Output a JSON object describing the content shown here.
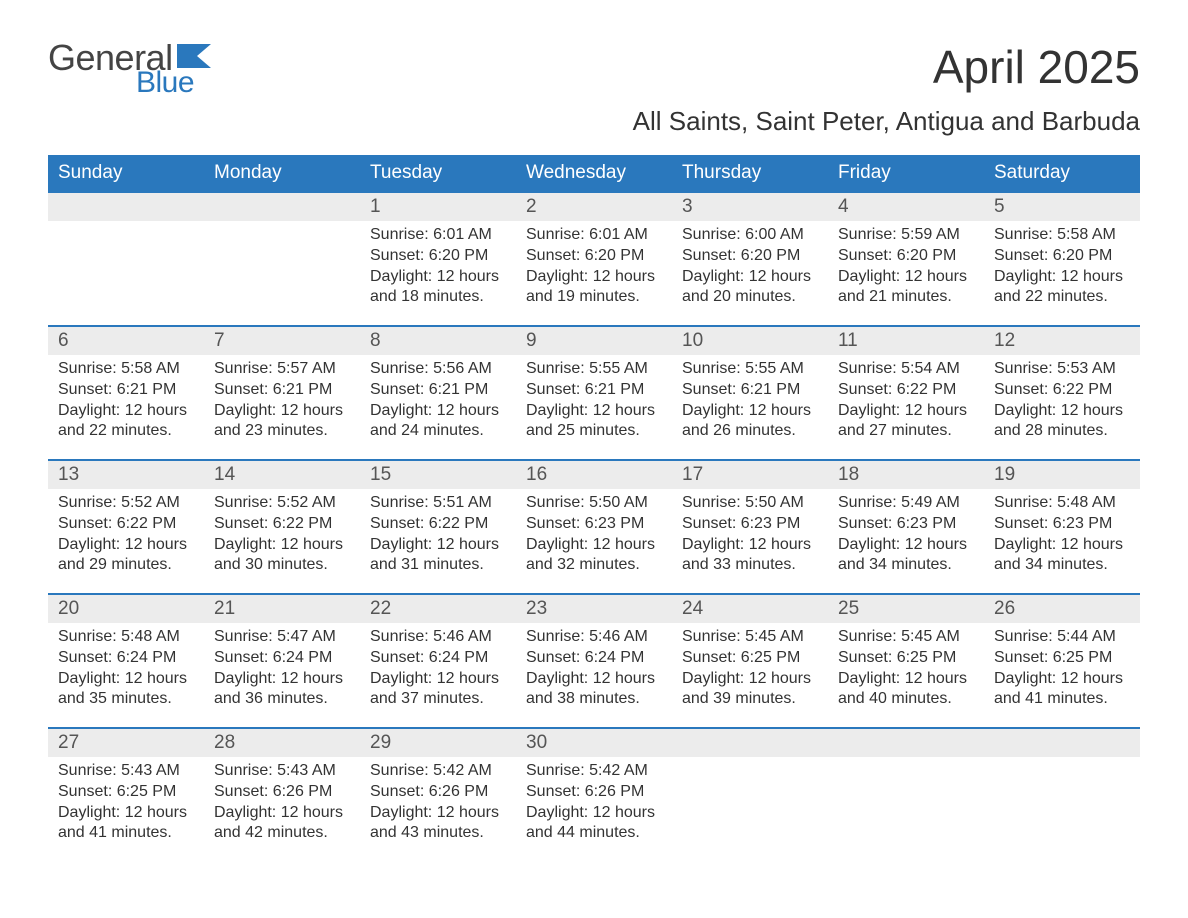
{
  "logo": {
    "word1": "General",
    "word2": "Blue",
    "flag_color": "#2a78bd",
    "word1_color": "#444444",
    "word2_color": "#2a78bd"
  },
  "title": "April 2025",
  "location": "All Saints, Saint Peter, Antigua and Barbuda",
  "colors": {
    "header_bg": "#2a78bd",
    "header_text": "#ffffff",
    "daynum_bg": "#ececec",
    "daynum_text": "#555555",
    "body_text": "#333333",
    "week_border": "#2a78bd",
    "page_bg": "#ffffff"
  },
  "weekdays": [
    "Sunday",
    "Monday",
    "Tuesday",
    "Wednesday",
    "Thursday",
    "Friday",
    "Saturday"
  ],
  "weeks": [
    [
      {
        "day": "",
        "sunrise": "",
        "sunset": "",
        "daylight1": "",
        "daylight2": ""
      },
      {
        "day": "",
        "sunrise": "",
        "sunset": "",
        "daylight1": "",
        "daylight2": ""
      },
      {
        "day": "1",
        "sunrise": "Sunrise: 6:01 AM",
        "sunset": "Sunset: 6:20 PM",
        "daylight1": "Daylight: 12 hours",
        "daylight2": "and 18 minutes."
      },
      {
        "day": "2",
        "sunrise": "Sunrise: 6:01 AM",
        "sunset": "Sunset: 6:20 PM",
        "daylight1": "Daylight: 12 hours",
        "daylight2": "and 19 minutes."
      },
      {
        "day": "3",
        "sunrise": "Sunrise: 6:00 AM",
        "sunset": "Sunset: 6:20 PM",
        "daylight1": "Daylight: 12 hours",
        "daylight2": "and 20 minutes."
      },
      {
        "day": "4",
        "sunrise": "Sunrise: 5:59 AM",
        "sunset": "Sunset: 6:20 PM",
        "daylight1": "Daylight: 12 hours",
        "daylight2": "and 21 minutes."
      },
      {
        "day": "5",
        "sunrise": "Sunrise: 5:58 AM",
        "sunset": "Sunset: 6:20 PM",
        "daylight1": "Daylight: 12 hours",
        "daylight2": "and 22 minutes."
      }
    ],
    [
      {
        "day": "6",
        "sunrise": "Sunrise: 5:58 AM",
        "sunset": "Sunset: 6:21 PM",
        "daylight1": "Daylight: 12 hours",
        "daylight2": "and 22 minutes."
      },
      {
        "day": "7",
        "sunrise": "Sunrise: 5:57 AM",
        "sunset": "Sunset: 6:21 PM",
        "daylight1": "Daylight: 12 hours",
        "daylight2": "and 23 minutes."
      },
      {
        "day": "8",
        "sunrise": "Sunrise: 5:56 AM",
        "sunset": "Sunset: 6:21 PM",
        "daylight1": "Daylight: 12 hours",
        "daylight2": "and 24 minutes."
      },
      {
        "day": "9",
        "sunrise": "Sunrise: 5:55 AM",
        "sunset": "Sunset: 6:21 PM",
        "daylight1": "Daylight: 12 hours",
        "daylight2": "and 25 minutes."
      },
      {
        "day": "10",
        "sunrise": "Sunrise: 5:55 AM",
        "sunset": "Sunset: 6:21 PM",
        "daylight1": "Daylight: 12 hours",
        "daylight2": "and 26 minutes."
      },
      {
        "day": "11",
        "sunrise": "Sunrise: 5:54 AM",
        "sunset": "Sunset: 6:22 PM",
        "daylight1": "Daylight: 12 hours",
        "daylight2": "and 27 minutes."
      },
      {
        "day": "12",
        "sunrise": "Sunrise: 5:53 AM",
        "sunset": "Sunset: 6:22 PM",
        "daylight1": "Daylight: 12 hours",
        "daylight2": "and 28 minutes."
      }
    ],
    [
      {
        "day": "13",
        "sunrise": "Sunrise: 5:52 AM",
        "sunset": "Sunset: 6:22 PM",
        "daylight1": "Daylight: 12 hours",
        "daylight2": "and 29 minutes."
      },
      {
        "day": "14",
        "sunrise": "Sunrise: 5:52 AM",
        "sunset": "Sunset: 6:22 PM",
        "daylight1": "Daylight: 12 hours",
        "daylight2": "and 30 minutes."
      },
      {
        "day": "15",
        "sunrise": "Sunrise: 5:51 AM",
        "sunset": "Sunset: 6:22 PM",
        "daylight1": "Daylight: 12 hours",
        "daylight2": "and 31 minutes."
      },
      {
        "day": "16",
        "sunrise": "Sunrise: 5:50 AM",
        "sunset": "Sunset: 6:23 PM",
        "daylight1": "Daylight: 12 hours",
        "daylight2": "and 32 minutes."
      },
      {
        "day": "17",
        "sunrise": "Sunrise: 5:50 AM",
        "sunset": "Sunset: 6:23 PM",
        "daylight1": "Daylight: 12 hours",
        "daylight2": "and 33 minutes."
      },
      {
        "day": "18",
        "sunrise": "Sunrise: 5:49 AM",
        "sunset": "Sunset: 6:23 PM",
        "daylight1": "Daylight: 12 hours",
        "daylight2": "and 34 minutes."
      },
      {
        "day": "19",
        "sunrise": "Sunrise: 5:48 AM",
        "sunset": "Sunset: 6:23 PM",
        "daylight1": "Daylight: 12 hours",
        "daylight2": "and 34 minutes."
      }
    ],
    [
      {
        "day": "20",
        "sunrise": "Sunrise: 5:48 AM",
        "sunset": "Sunset: 6:24 PM",
        "daylight1": "Daylight: 12 hours",
        "daylight2": "and 35 minutes."
      },
      {
        "day": "21",
        "sunrise": "Sunrise: 5:47 AM",
        "sunset": "Sunset: 6:24 PM",
        "daylight1": "Daylight: 12 hours",
        "daylight2": "and 36 minutes."
      },
      {
        "day": "22",
        "sunrise": "Sunrise: 5:46 AM",
        "sunset": "Sunset: 6:24 PM",
        "daylight1": "Daylight: 12 hours",
        "daylight2": "and 37 minutes."
      },
      {
        "day": "23",
        "sunrise": "Sunrise: 5:46 AM",
        "sunset": "Sunset: 6:24 PM",
        "daylight1": "Daylight: 12 hours",
        "daylight2": "and 38 minutes."
      },
      {
        "day": "24",
        "sunrise": "Sunrise: 5:45 AM",
        "sunset": "Sunset: 6:25 PM",
        "daylight1": "Daylight: 12 hours",
        "daylight2": "and 39 minutes."
      },
      {
        "day": "25",
        "sunrise": "Sunrise: 5:45 AM",
        "sunset": "Sunset: 6:25 PM",
        "daylight1": "Daylight: 12 hours",
        "daylight2": "and 40 minutes."
      },
      {
        "day": "26",
        "sunrise": "Sunrise: 5:44 AM",
        "sunset": "Sunset: 6:25 PM",
        "daylight1": "Daylight: 12 hours",
        "daylight2": "and 41 minutes."
      }
    ],
    [
      {
        "day": "27",
        "sunrise": "Sunrise: 5:43 AM",
        "sunset": "Sunset: 6:25 PM",
        "daylight1": "Daylight: 12 hours",
        "daylight2": "and 41 minutes."
      },
      {
        "day": "28",
        "sunrise": "Sunrise: 5:43 AM",
        "sunset": "Sunset: 6:26 PM",
        "daylight1": "Daylight: 12 hours",
        "daylight2": "and 42 minutes."
      },
      {
        "day": "29",
        "sunrise": "Sunrise: 5:42 AM",
        "sunset": "Sunset: 6:26 PM",
        "daylight1": "Daylight: 12 hours",
        "daylight2": "and 43 minutes."
      },
      {
        "day": "30",
        "sunrise": "Sunrise: 5:42 AM",
        "sunset": "Sunset: 6:26 PM",
        "daylight1": "Daylight: 12 hours",
        "daylight2": "and 44 minutes."
      },
      {
        "day": "",
        "sunrise": "",
        "sunset": "",
        "daylight1": "",
        "daylight2": ""
      },
      {
        "day": "",
        "sunrise": "",
        "sunset": "",
        "daylight1": "",
        "daylight2": ""
      },
      {
        "day": "",
        "sunrise": "",
        "sunset": "",
        "daylight1": "",
        "daylight2": ""
      }
    ]
  ]
}
